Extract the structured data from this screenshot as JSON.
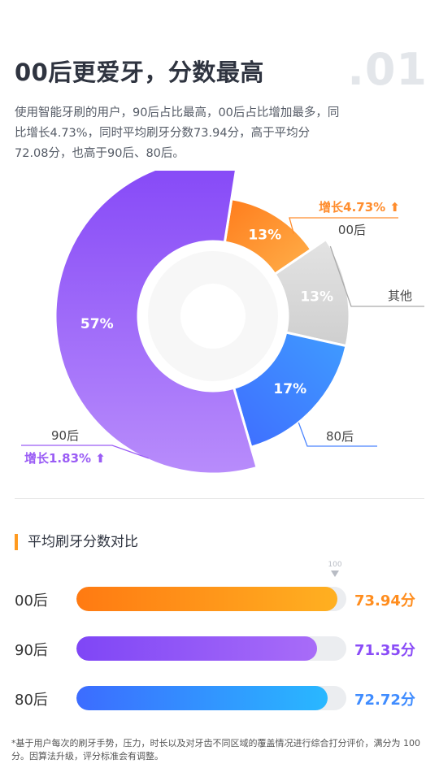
{
  "header": {
    "title": "00后更爱牙，分数最高",
    "section_number": ".01",
    "description": "使用智能牙刷的用户，90后占比最高，00后占比增加最多，同比增长4.73%，同时平均刷牙分数73.94分，高于平均分72.08分，也高于90后、80后。"
  },
  "chart_data": [
    {
      "type": "pie",
      "variant": "donut",
      "slices": [
        {
          "label": "00后",
          "value": 13,
          "display": "13%",
          "growth": "增长4.73%",
          "color": "#ff8d2e"
        },
        {
          "label": "其他",
          "value": 13,
          "display": "13%",
          "color": "#d3d3d3"
        },
        {
          "label": "80后",
          "value": 17,
          "display": "17%",
          "color": "#4a84ff"
        },
        {
          "label": "90后",
          "value": 57,
          "display": "57%",
          "growth": "增长1.83%",
          "color": "#9a5cf5"
        }
      ]
    },
    {
      "type": "bar",
      "orientation": "horizontal",
      "title": "平均刷牙分数对比",
      "max": 100,
      "max_label": "100",
      "categories": [
        "00后",
        "90后",
        "80后"
      ],
      "values": [
        73.94,
        71.35,
        72.72
      ],
      "value_labels": [
        "73.94分",
        "71.35分",
        "72.72分"
      ],
      "colors": [
        "#ff8d1e",
        "#8a4cf7",
        "#3f8cff"
      ]
    }
  ],
  "footnote": "*基于用户每次的刷牙手势，压力，时长以及对牙齿不同区域的覆盖情况进行综合打分评价，满分为 100 分。因算法升级，评分标准会有调整。"
}
